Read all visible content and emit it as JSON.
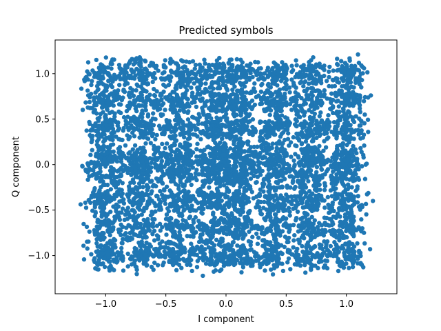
{
  "chart_data": {
    "type": "scatter",
    "title": "Predicted symbols",
    "xlabel": "I component",
    "ylabel": "Q component",
    "xlim": [
      -1.42,
      1.42
    ],
    "ylim": [
      -1.42,
      1.37
    ],
    "xticks": [
      -1.0,
      -0.5,
      0.0,
      0.5,
      1.0
    ],
    "xtick_labels": [
      "−1.0",
      "−0.5",
      "0.0",
      "0.5",
      "1.0"
    ],
    "yticks": [
      -1.0,
      -0.5,
      0.0,
      0.5,
      1.0
    ],
    "ytick_labels": [
      "−1.0",
      "−0.5",
      "0.0",
      "0.5",
      "1.0"
    ],
    "grid": false,
    "color": "#1f77b4",
    "constellation_levels": [
      -1.0,
      -0.7,
      -0.4,
      -0.1,
      0.1,
      0.4,
      0.7,
      1.0
    ],
    "cluster_spread": 0.16
  }
}
